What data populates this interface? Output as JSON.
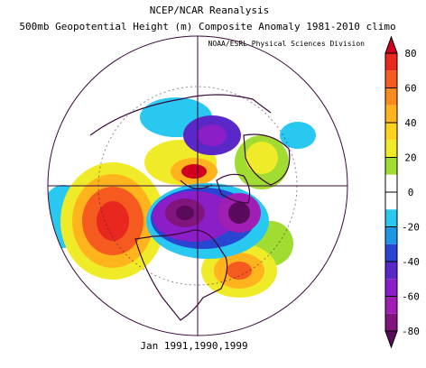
{
  "header": {
    "title": "NCEP/NCAR Reanalysis",
    "subtitle": "500mb Geopotential Height (m) Composite Anomaly 1981-2010 climo"
  },
  "credit": "NOAA/ESRL Physical Sciences Division",
  "footer": "Jan 1991,1990,1999",
  "colorbar": {
    "ticks": [
      80,
      60,
      40,
      20,
      0,
      -20,
      -40,
      -60,
      -80
    ],
    "colors": [
      "#d2001e",
      "#e8281e",
      "#f55a1e",
      "#fa8c1e",
      "#ffb41e",
      "#ffd21e",
      "#f0eb28",
      "#a0dc32",
      "#ffffff",
      "#ffffff",
      "#28c8f0",
      "#1e96e6",
      "#2846d2",
      "#5a28c8",
      "#8c1ec8",
      "#a01eb4",
      "#82147e",
      "#5a0a5a"
    ]
  }
}
